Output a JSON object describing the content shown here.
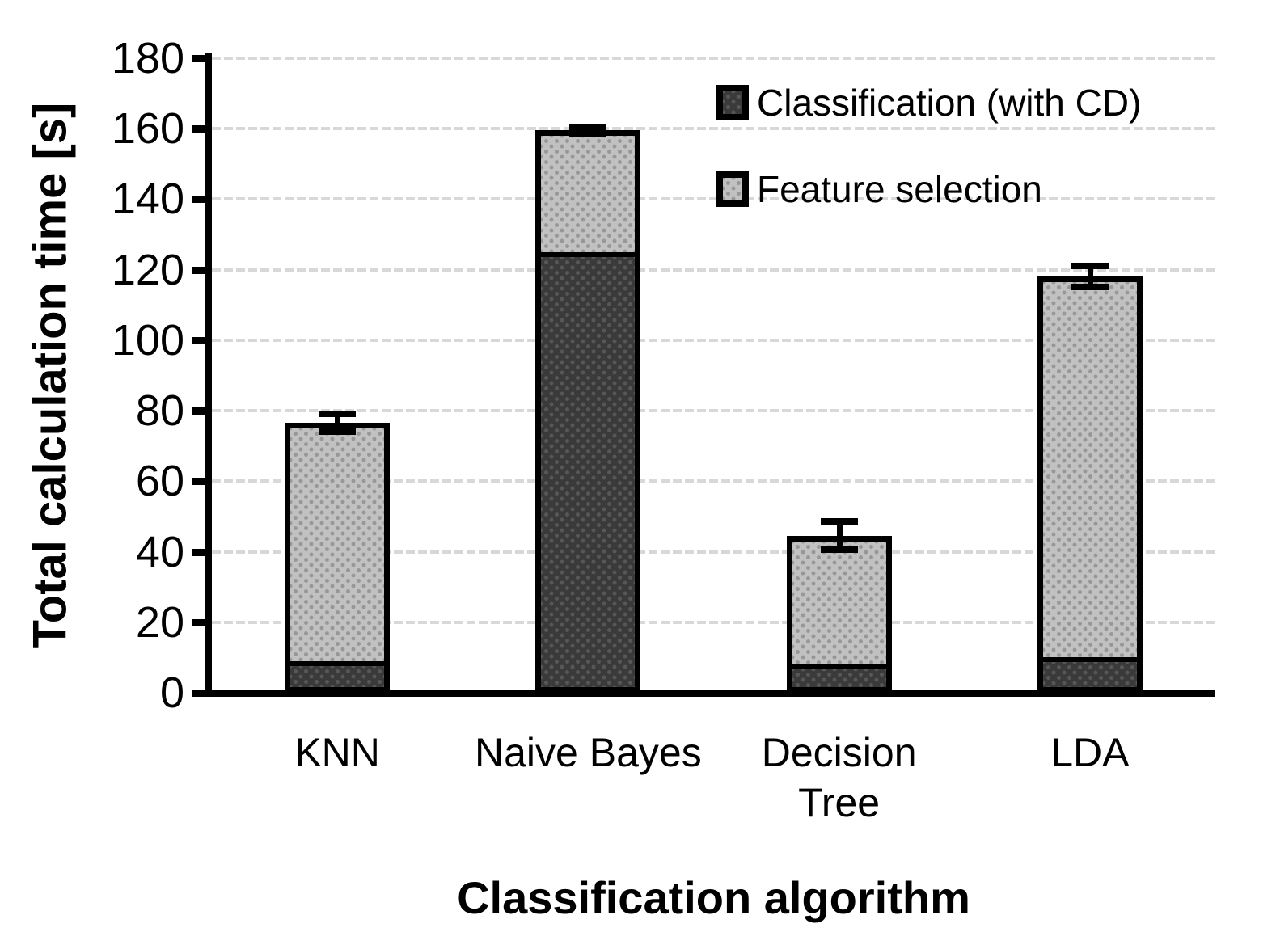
{
  "chart_data": {
    "type": "bar",
    "stacked": true,
    "title": "",
    "xlabel": "Classification algorithm",
    "ylabel": "Total calculation time [s]",
    "categories": [
      "KNN",
      "Naive Bayes",
      "Decision Tree",
      "LDA"
    ],
    "category_lines": [
      [
        "KNN"
      ],
      [
        "Naive Bayes"
      ],
      [
        "Decision",
        "Tree"
      ],
      [
        "LDA"
      ]
    ],
    "series": [
      {
        "name": "Classification (with CD)",
        "values": [
          9,
          125,
          8,
          10
        ],
        "color": "#3a3a3a",
        "pattern_dot_color": "#575757"
      },
      {
        "name": "Feature selection",
        "values": [
          67.5,
          34.5,
          36.5,
          108
        ],
        "color": "#c1c1c1",
        "pattern_dot_color": "#979797"
      }
    ],
    "stack_totals": [
      76.5,
      159.5,
      44.5,
      118
    ],
    "error_bars": {
      "on": "stack-total",
      "plus_minus": [
        2.5,
        1,
        4,
        3
      ]
    },
    "ylim": [
      0,
      180
    ],
    "yticks": [
      0,
      20,
      40,
      60,
      80,
      100,
      120,
      140,
      160,
      180
    ],
    "grid": {
      "horizontal": true,
      "style": "dashed",
      "color": "#d8d8d8"
    },
    "legend_position": "top-right-inside",
    "axis_color": "#000000",
    "bar_border_color": "#000000",
    "background": "#ffffff"
  }
}
